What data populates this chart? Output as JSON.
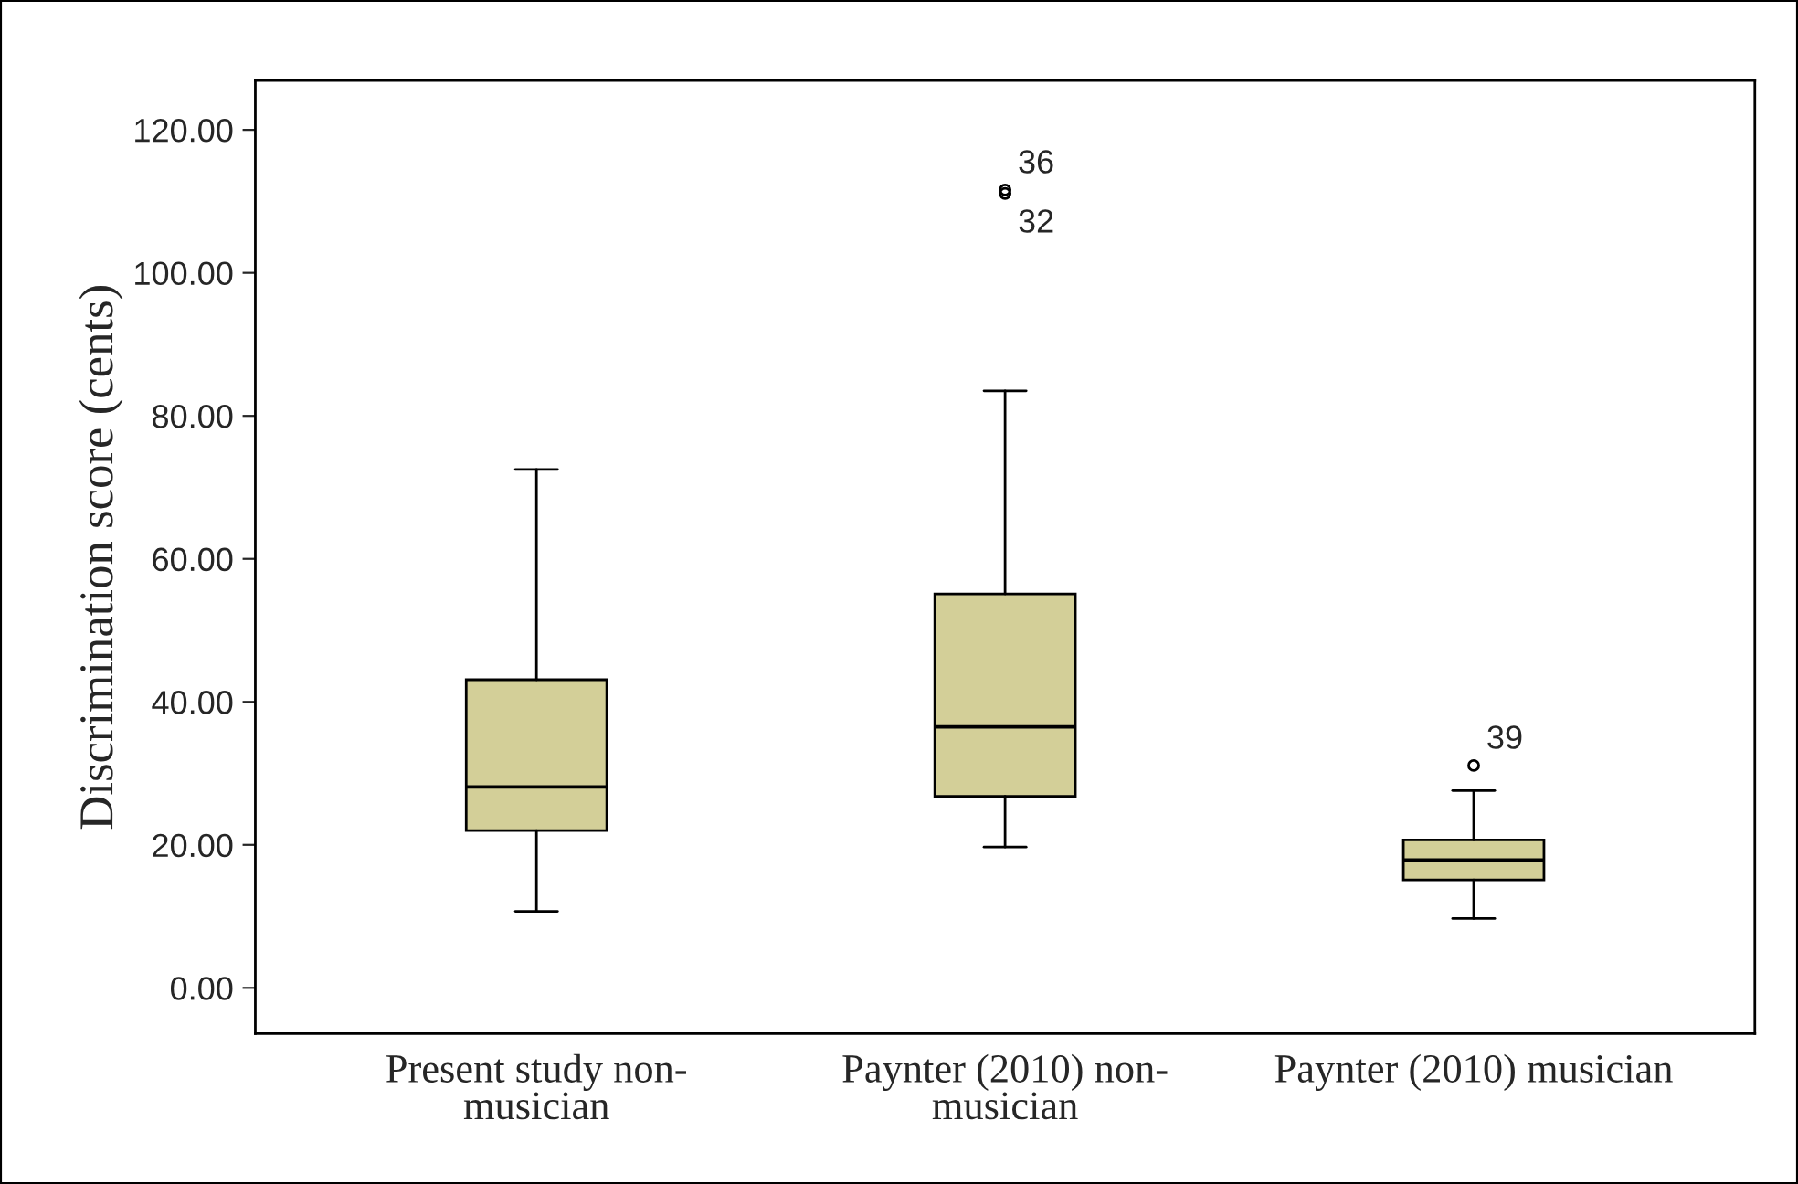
{
  "chart_data": {
    "type": "box",
    "ylabel": "Discrimination score (cents)",
    "categories": [
      "Present study non-\nmusician",
      "Paynter (2010) non-\nmusician",
      "Paynter (2010) musician"
    ],
    "color": "#d3cf98",
    "boxes": [
      {
        "low": 10.7,
        "q1": 22.0,
        "median": 28.1,
        "q3": 43.1,
        "high": 72.5
      },
      {
        "low": 19.7,
        "q1": 26.8,
        "median": 36.5,
        "q3": 55.1,
        "high": 83.5,
        "outliers": [
          111.6,
          111.1
        ]
      },
      {
        "low": 9.7,
        "q1": 15.1,
        "median": 17.9,
        "q3": 20.7,
        "high": 27.6,
        "outliers": [
          31.1
        ]
      }
    ],
    "annotations": [
      "36",
      "32",
      "39"
    ],
    "ylim": [
      -6.4,
      126.9
    ],
    "yticks": [
      {
        "value": 0,
        "label": "0.00"
      },
      {
        "value": 20,
        "label": "20.00"
      },
      {
        "value": 40,
        "label": "40.00"
      },
      {
        "value": 60,
        "label": "60.00"
      },
      {
        "value": 80,
        "label": "80.00"
      },
      {
        "value": 100,
        "label": "100.00"
      },
      {
        "value": 120,
        "label": "120.00"
      }
    ],
    "grid": false,
    "legend": false
  }
}
